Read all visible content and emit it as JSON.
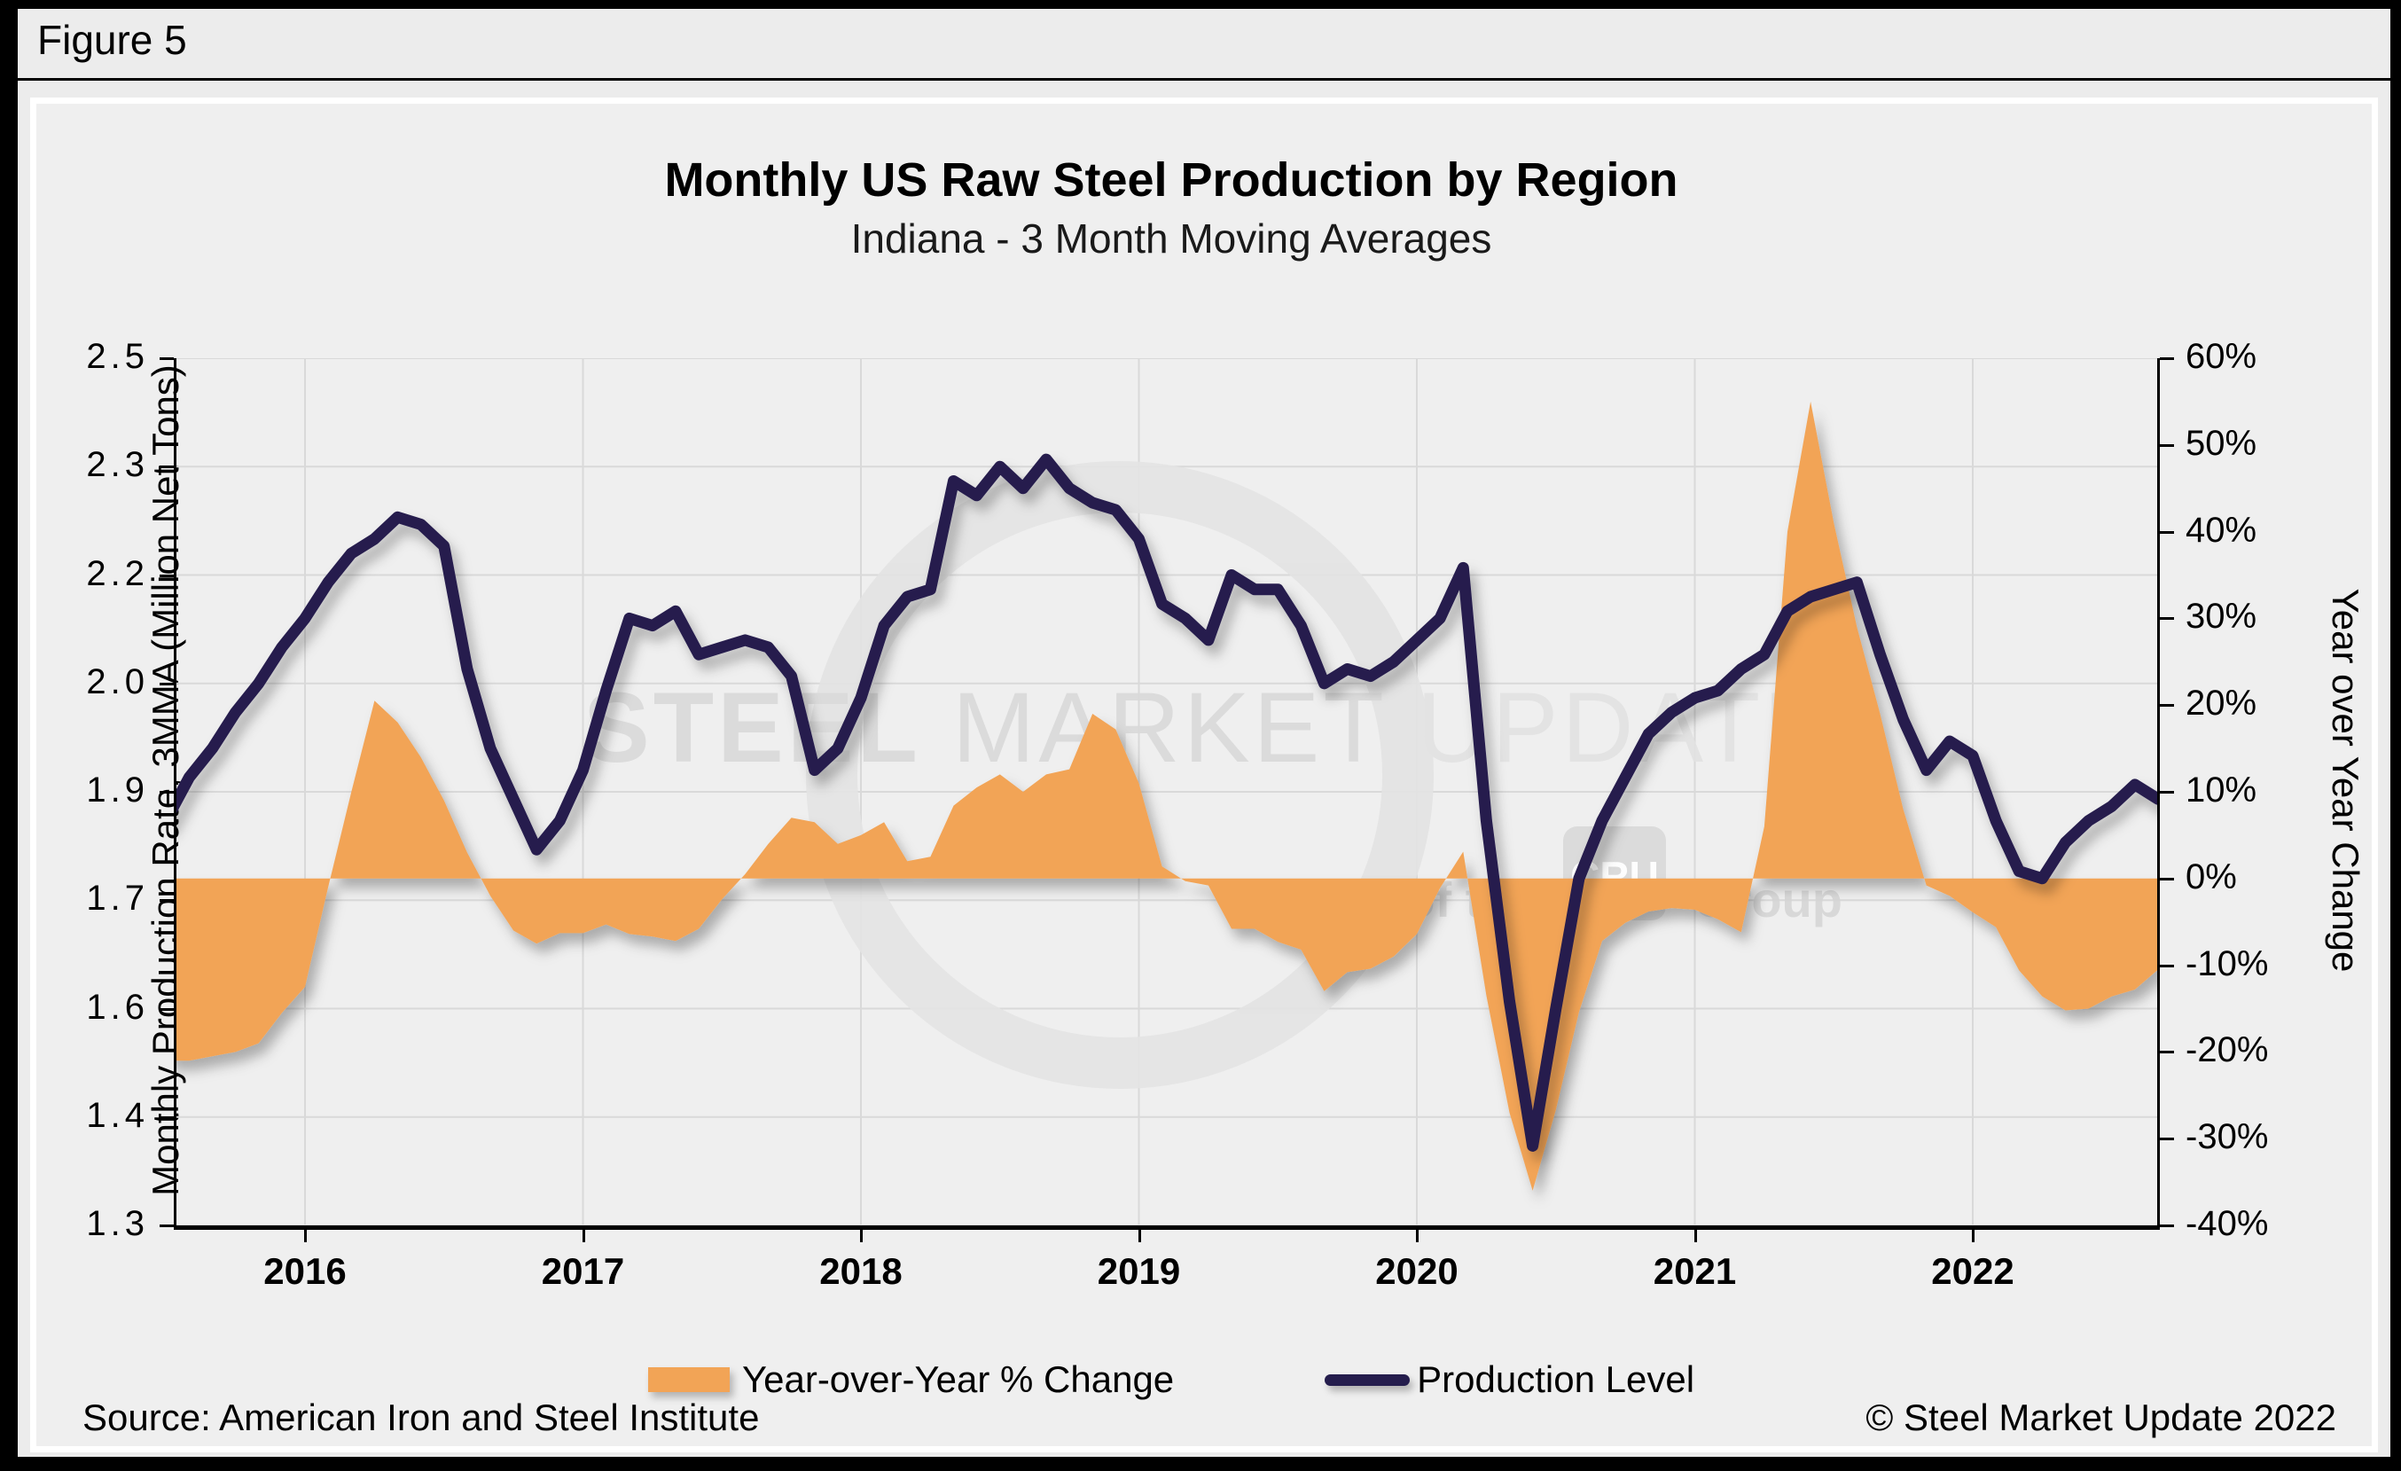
{
  "figure_label": "Figure 5",
  "header": {
    "title": "Monthly US Raw Steel Production by Region",
    "subtitle": "Indiana - 3 Month Moving Averages"
  },
  "footer": {
    "source": "Source: American Iron and Steel Institute",
    "copyright": "© Steel Market Update 2022"
  },
  "watermark": {
    "brand_bold": "STEEL",
    "brand_regular": " MARKET ",
    "brand_light": "UPDATE",
    "tagline_prefix": "part of the",
    "badge": "CRU",
    "tagline_suffix": "Group"
  },
  "legend": {
    "area_label": "Year-over-Year % Change",
    "line_label": "Production Level"
  },
  "colors": {
    "area_orange": "#f2a456",
    "line_navy": "#251d4d",
    "gridline": "#d9d9d9",
    "plot_bg": "#efefef",
    "page_bg": "#ececec",
    "watermark_gray": "#dcdcdc"
  },
  "chart_data": {
    "type": "combo: area (right axis) + line (left axis)",
    "title": "Monthly US Raw Steel Production by Region",
    "subtitle": "Indiana - 3 Month Moving Averages",
    "x_axis": {
      "tick_labels": [
        "2016",
        "2017",
        "2018",
        "2019",
        "2020",
        "2021",
        "2022"
      ],
      "start_decimal_year": 2015.5,
      "step_years": 0.0833333,
      "note": "monthly points from Jul 2015 through Sep 2022"
    },
    "y_left": {
      "title": "Monthly Production Rate, 3MMA (Million Net Tons)",
      "tick_labels": [
        "2.5",
        "2.3",
        "2.2",
        "2.0",
        "1.9",
        "1.7",
        "1.6",
        "1.4",
        "1.3"
      ],
      "min": 1.3,
      "max": 2.5,
      "note": "ticks evenly spaced every 0.15 (labels floor-rounded)"
    },
    "y_right": {
      "title": "Year over Year Change",
      "tick_labels": [
        "60%",
        "50%",
        "40%",
        "30%",
        "20%",
        "10%",
        "0%",
        "-10%",
        "-20%",
        "-30%",
        "-40%"
      ],
      "min": -40,
      "max": 60,
      "zero_aligns_with_left_value": 1.78
    },
    "grid": {
      "horizontal": true,
      "vertical": true
    },
    "legend_position": "bottom center",
    "series": [
      {
        "name": "Production Level",
        "type": "line",
        "axis": "left",
        "values": [
          1.86,
          1.92,
          1.96,
          2.01,
          2.05,
          2.1,
          2.14,
          2.19,
          2.23,
          2.25,
          2.28,
          2.27,
          2.24,
          2.07,
          1.96,
          1.89,
          1.82,
          1.86,
          1.93,
          2.04,
          2.14,
          2.13,
          2.15,
          2.09,
          2.1,
          2.11,
          2.1,
          2.06,
          1.93,
          1.96,
          2.03,
          2.13,
          2.17,
          2.18,
          2.33,
          2.31,
          2.35,
          2.32,
          2.36,
          2.32,
          2.3,
          2.29,
          2.25,
          2.16,
          2.14,
          2.11,
          2.2,
          2.18,
          2.18,
          2.13,
          2.05,
          2.07,
          2.06,
          2.08,
          2.11,
          2.14,
          2.21,
          1.86,
          1.61,
          1.41,
          1.6,
          1.78,
          1.86,
          1.92,
          1.98,
          2.01,
          2.03,
          2.04,
          2.07,
          2.09,
          2.15,
          2.17,
          2.18,
          2.19,
          2.09,
          2.0,
          1.93,
          1.97,
          1.95,
          1.86,
          1.79,
          1.78,
          1.83,
          1.86,
          1.88,
          1.91,
          1.89
        ]
      },
      {
        "name": "Year-over-Year % Change",
        "type": "area",
        "axis": "right",
        "values": [
          -21,
          -21,
          -20.5,
          -20,
          -19,
          -15.5,
          -12.5,
          -1,
          10,
          20.5,
          18,
          14,
          9,
          3,
          -2,
          -6,
          -7.5,
          -6.3,
          -6.3,
          -5.3,
          -6.4,
          -6.7,
          -7.2,
          -5.8,
          -2.4,
          0.5,
          4,
          7,
          6.5,
          4,
          5,
          6.5,
          2,
          2.5,
          8.4,
          10.5,
          12,
          10,
          12,
          12.6,
          19,
          17.2,
          11,
          1.4,
          -0.3,
          -0.8,
          -5.8,
          -5.8,
          -7.3,
          -8.2,
          -13,
          -10.8,
          -10.4,
          -9,
          -6.4,
          -1.1,
          3.1,
          -13.5,
          -27,
          -36,
          -26.7,
          -15.4,
          -7.2,
          -5.1,
          -3.8,
          -3.4,
          -3.6,
          -4.7,
          -6.2,
          6,
          40,
          55,
          41,
          29,
          19,
          8,
          -0.8,
          -2,
          -3.9,
          -5.6,
          -10.6,
          -13.6,
          -15.2,
          -15,
          -13.6,
          -12.8,
          -10.5
        ]
      }
    ]
  }
}
